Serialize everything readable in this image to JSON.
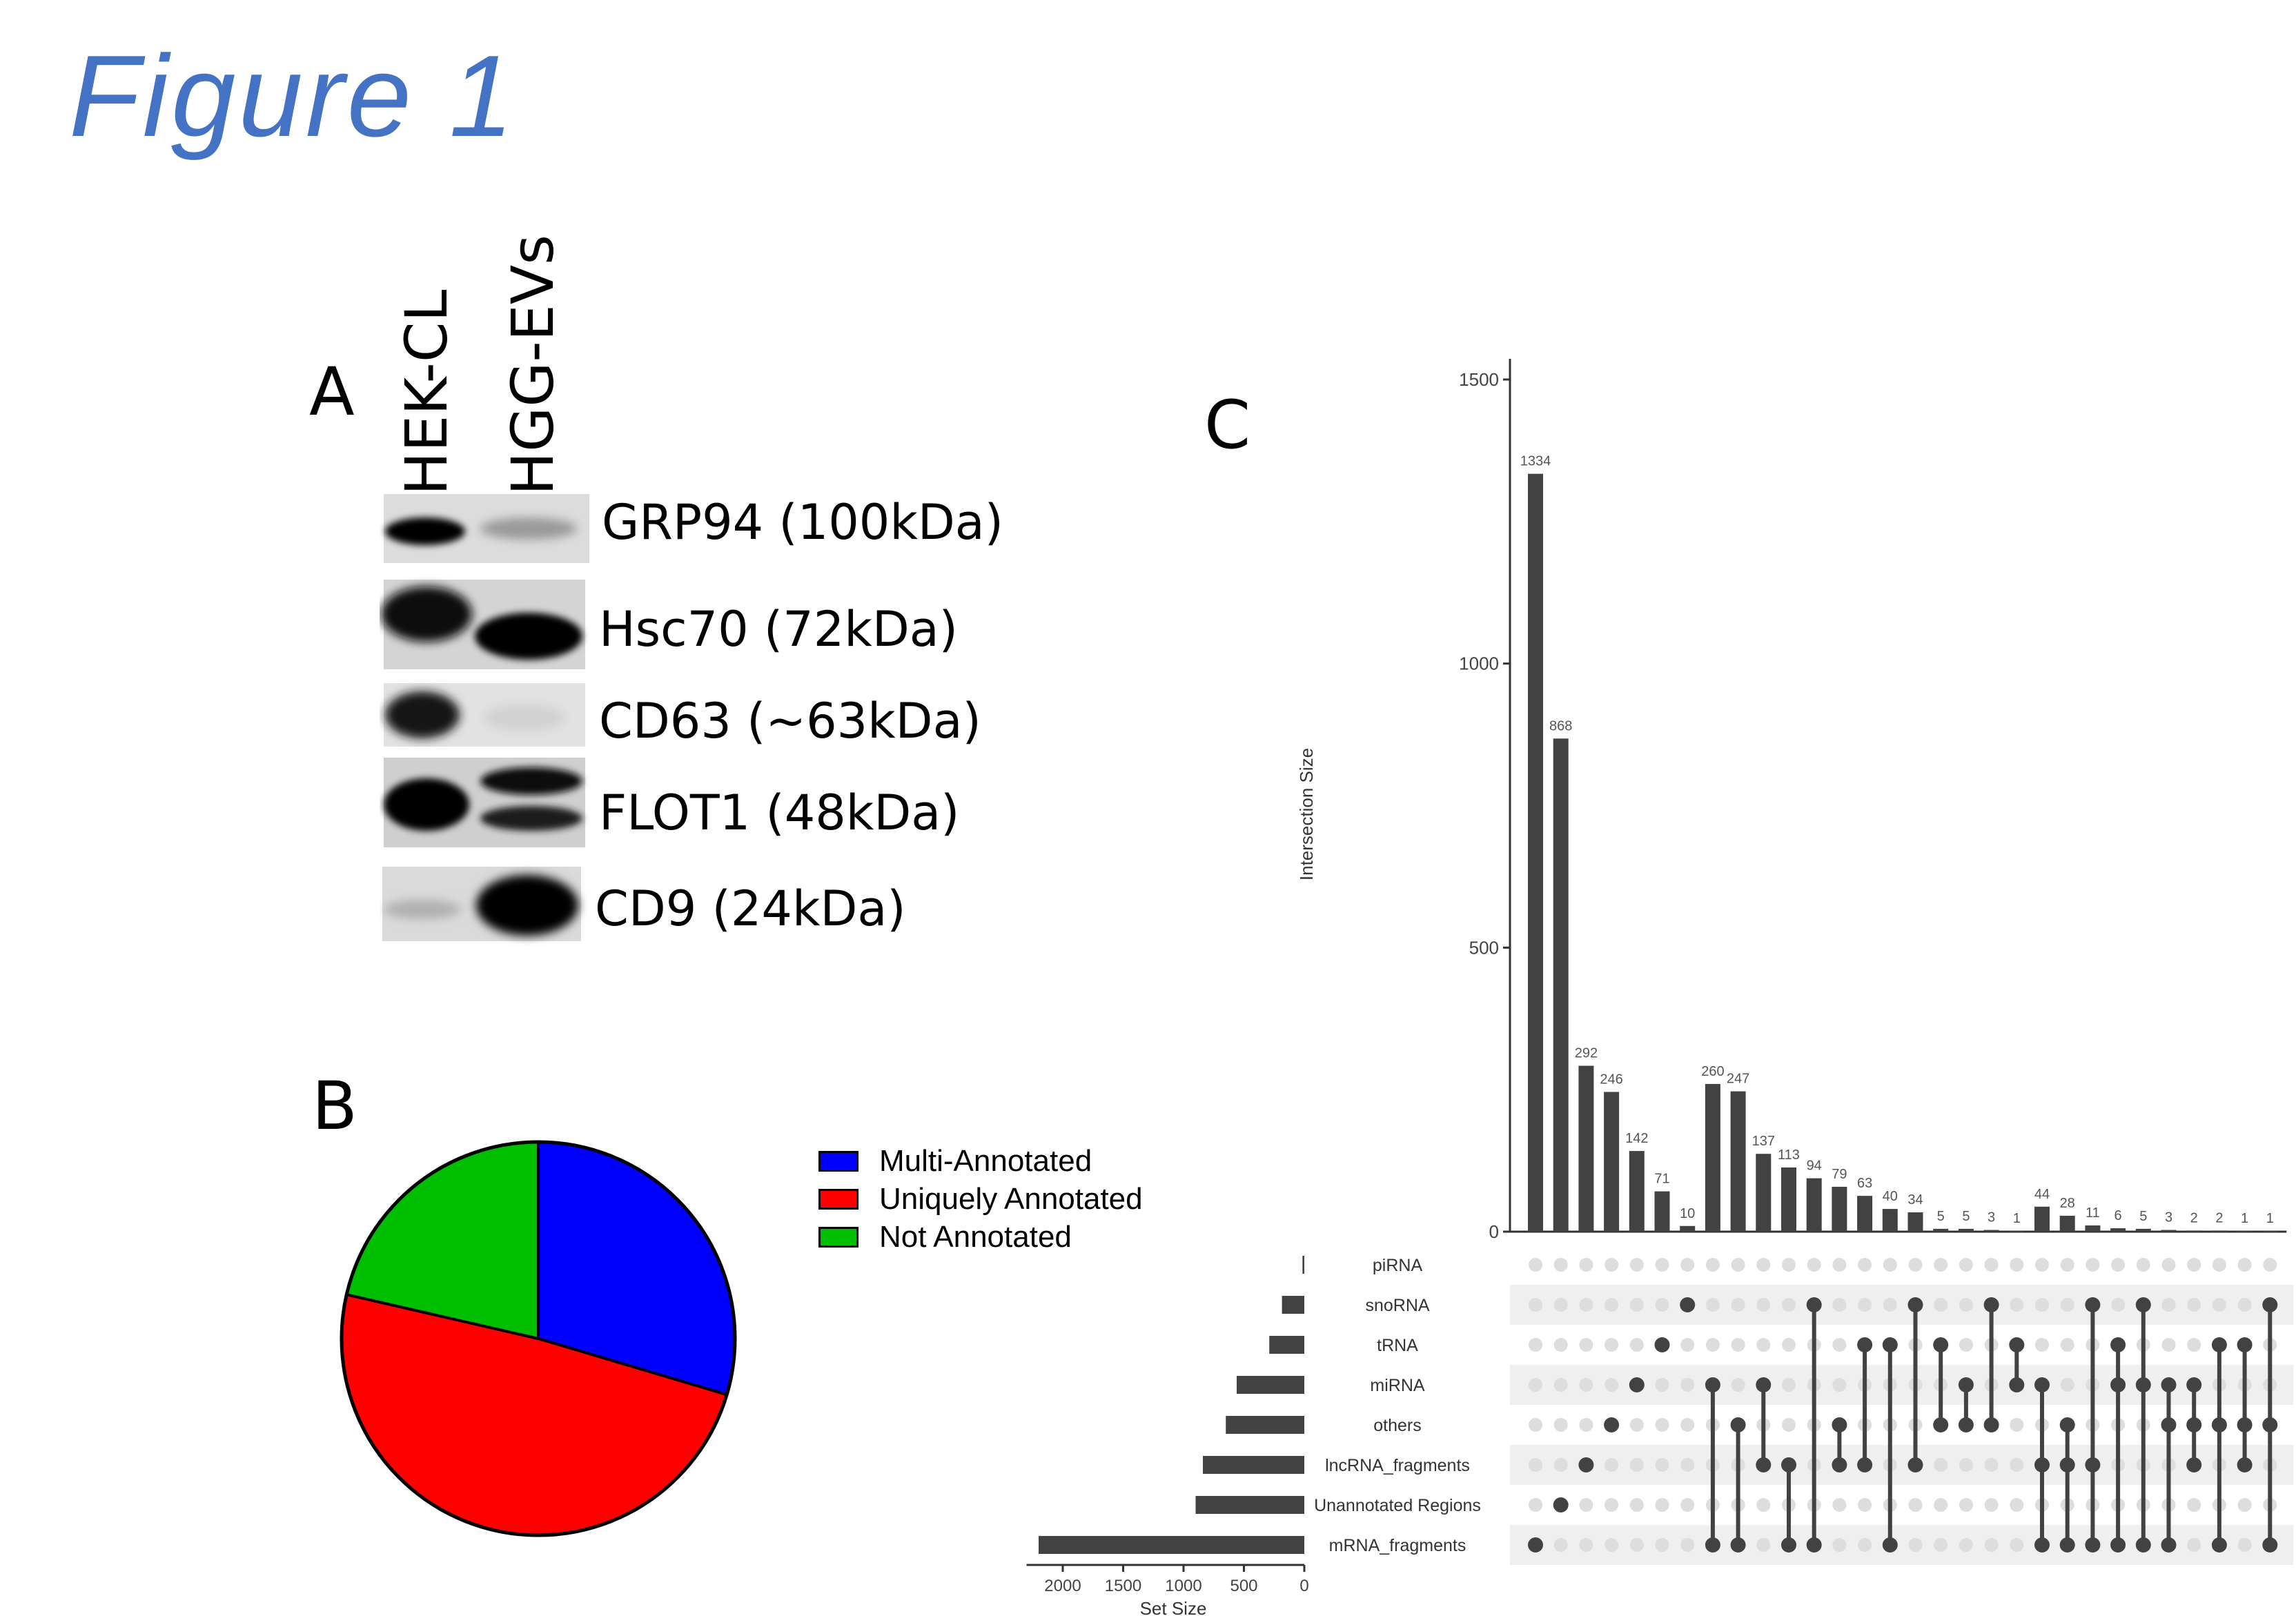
{
  "figure_title": "Figure 1",
  "panels": {
    "a": "A",
    "b": "B",
    "c": "C"
  },
  "western_blot": {
    "lanes": [
      "HEK-CL",
      "HGG-EVs"
    ],
    "bands": [
      {
        "label": "GRP94 (100kDa)",
        "hek": 0.9,
        "hgg": 0.2
      },
      {
        "label": "Hsc70 (72kDa)",
        "hek": 0.9,
        "hgg": 0.95
      },
      {
        "label": "CD63 (~63kDa)",
        "hek": 0.75,
        "hgg": 0.05
      },
      {
        "label": "FLOT1 (48kDa)",
        "hek": 0.95,
        "hgg": 0.85
      },
      {
        "label": "CD9 (24kDa)",
        "hek": 0.15,
        "hgg": 0.95
      }
    ]
  },
  "pie": {
    "legend": [
      {
        "label": "Multi-Annotated",
        "color": "#0000ff"
      },
      {
        "label": "Uniquely Annotated",
        "color": "#ff0000"
      },
      {
        "label": "Not Annotated",
        "color": "#00bf00"
      }
    ]
  },
  "chart_data": [
    {
      "type": "pie",
      "slices": [
        {
          "label": "Multi-Annotated",
          "value": 29.6,
          "color": "#0000ff"
        },
        {
          "label": "Uniquely Annotated",
          "value": 49.0,
          "color": "#ff0000"
        },
        {
          "label": "Not Annotated",
          "value": 21.4,
          "color": "#00bf00"
        }
      ],
      "start": "12 o'clock",
      "direction": "clockwise"
    },
    {
      "type": "bar",
      "ylabel": "Intersection Size",
      "ylim": [
        0,
        1500
      ],
      "yticks": [
        0,
        500,
        1000,
        1500
      ],
      "values": [
        1334,
        868,
        292,
        246,
        142,
        71,
        10,
        260,
        247,
        137,
        113,
        94,
        79,
        63,
        40,
        34,
        5,
        5,
        3,
        1,
        44,
        28,
        11,
        6,
        5,
        3,
        2,
        2,
        1,
        1
      ],
      "value_labels": [
        "1334",
        "868",
        "292",
        "246",
        "142",
        "71",
        "10",
        "260",
        "247",
        "137",
        "113",
        "94",
        "79",
        "63",
        "40",
        "34",
        "5",
        "5",
        "3",
        "1",
        "44",
        "28",
        "11",
        "6",
        "5",
        "3",
        "2",
        "2",
        "1",
        "1"
      ],
      "sets": [
        "piRNA",
        "snoRNA",
        "tRNA",
        "miRNA",
        "others",
        "lncRNA_fragments",
        "Unannotated Regions",
        "mRNA_fragments"
      ],
      "set_sizes": [
        15,
        185,
        290,
        560,
        650,
        840,
        900,
        2200
      ],
      "set_size_label": "Set Size",
      "set_size_ticks": [
        2000,
        1500,
        1000,
        500,
        0
      ],
      "memberships": [
        [
          "mRNA_fragments"
        ],
        [
          "Unannotated Regions"
        ],
        [
          "lncRNA_fragments"
        ],
        [
          "others"
        ],
        [
          "miRNA"
        ],
        [
          "tRNA"
        ],
        [
          "snoRNA"
        ],
        [
          "miRNA",
          "mRNA_fragments"
        ],
        [
          "others",
          "mRNA_fragments"
        ],
        [
          "miRNA",
          "lncRNA_fragments"
        ],
        [
          "lncRNA_fragments",
          "mRNA_fragments"
        ],
        [
          "snoRNA",
          "mRNA_fragments"
        ],
        [
          "others",
          "lncRNA_fragments"
        ],
        [
          "tRNA",
          "lncRNA_fragments"
        ],
        [
          "tRNA",
          "mRNA_fragments"
        ],
        [
          "snoRNA",
          "lncRNA_fragments"
        ],
        [
          "tRNA",
          "others"
        ],
        [
          "miRNA",
          "others"
        ],
        [
          "snoRNA",
          "others"
        ],
        [
          "tRNA",
          "miRNA"
        ],
        [
          "miRNA",
          "lncRNA_fragments",
          "mRNA_fragments"
        ],
        [
          "others",
          "lncRNA_fragments",
          "mRNA_fragments"
        ],
        [
          "snoRNA",
          "lncRNA_fragments",
          "mRNA_fragments"
        ],
        [
          "tRNA",
          "miRNA",
          "mRNA_fragments"
        ],
        [
          "snoRNA",
          "miRNA",
          "mRNA_fragments"
        ],
        [
          "miRNA",
          "others",
          "mRNA_fragments"
        ],
        [
          "miRNA",
          "others",
          "lncRNA_fragments"
        ],
        [
          "tRNA",
          "others",
          "mRNA_fragments"
        ],
        [
          "tRNA",
          "others",
          "lncRNA_fragments"
        ],
        [
          "snoRNA",
          "others",
          "mRNA_fragments"
        ]
      ]
    }
  ]
}
